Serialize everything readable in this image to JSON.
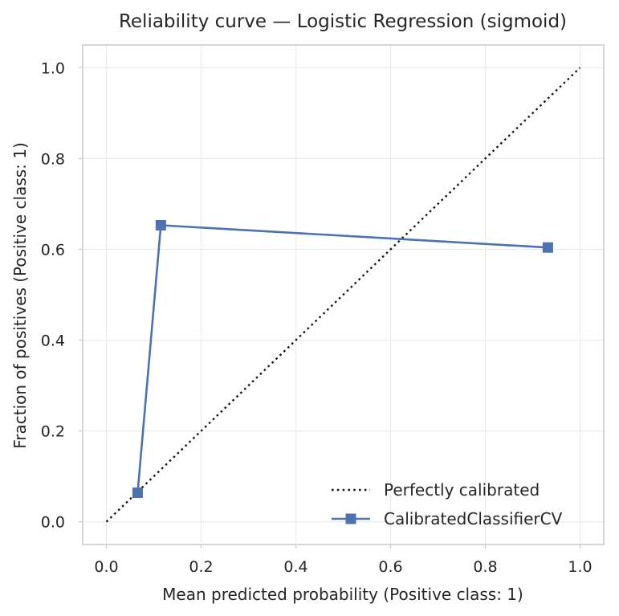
{
  "chart_data": {
    "type": "line",
    "title": "Reliability curve — Logistic Regression (sigmoid)",
    "xlabel": "Mean predicted probability (Positive class: 1)",
    "ylabel": "Fraction of positives (Positive class: 1)",
    "xlim": [
      -0.05,
      1.05
    ],
    "ylim": [
      -0.05,
      1.05
    ],
    "xticks": [
      0.0,
      0.2,
      0.4,
      0.6,
      0.8,
      1.0
    ],
    "yticks": [
      0.0,
      0.2,
      0.4,
      0.6,
      0.8,
      1.0
    ],
    "xtick_labels": [
      "0.0",
      "0.2",
      "0.4",
      "0.6",
      "0.8",
      "1.0"
    ],
    "ytick_labels": [
      "0.0",
      "0.2",
      "0.4",
      "0.6",
      "0.8",
      "1.0"
    ],
    "grid": true,
    "legend_position": "lower-right",
    "series": [
      {
        "name": "Perfectly calibrated",
        "style": "dotted",
        "color": "#1a1a1a",
        "x": [
          0.0,
          1.0
        ],
        "y": [
          0.0,
          1.0
        ]
      },
      {
        "name": "CalibratedClassifierCV",
        "style": "solid",
        "marker": "square",
        "color": "#4c72b0",
        "x": [
          0.066,
          0.115,
          0.932
        ],
        "y": [
          0.064,
          0.653,
          0.604
        ]
      }
    ]
  }
}
